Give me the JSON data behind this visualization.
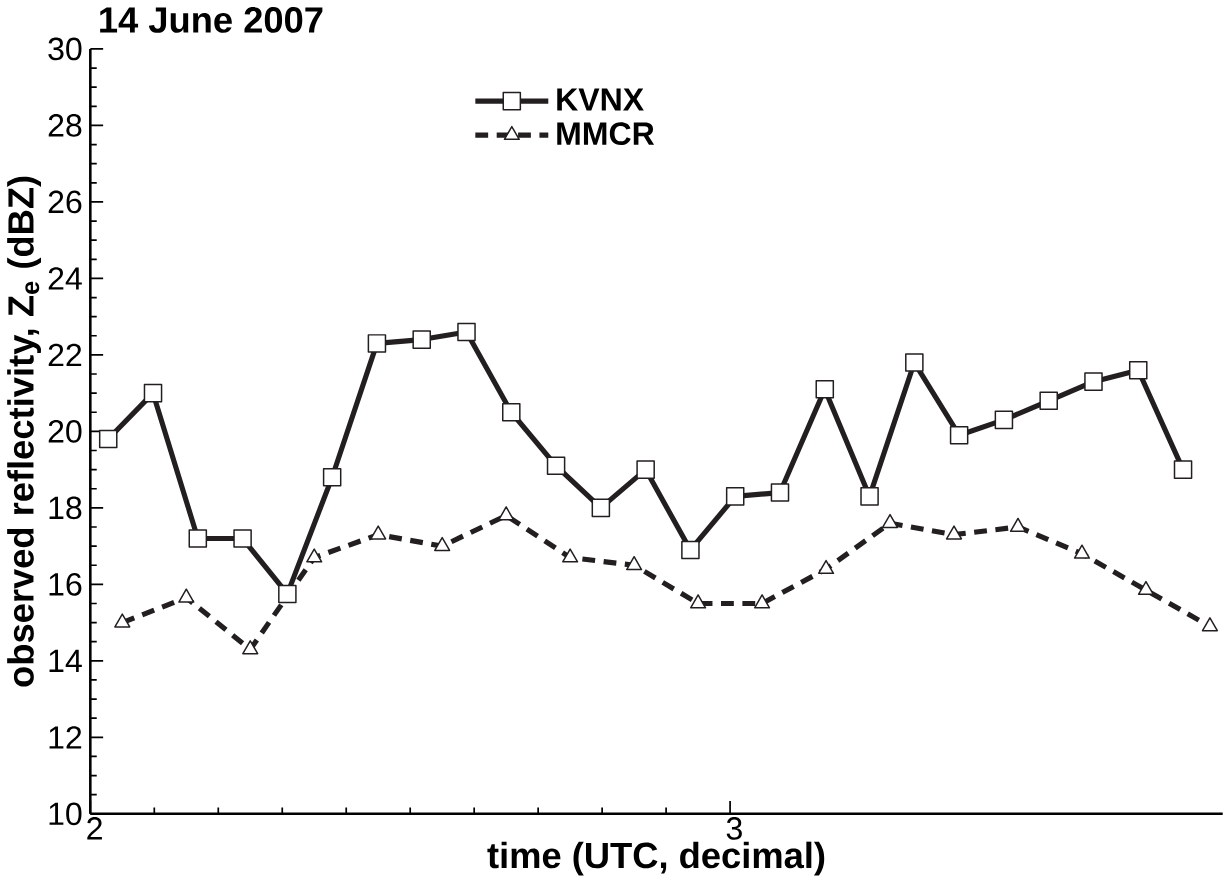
{
  "chart_data": {
    "type": "line",
    "title": "14 June 2007",
    "xlabel": "time (UTC, decimal)",
    "ylabel": "observed reflectivity, Z$_{e}$ (dBZ)",
    "xlim": [
      2,
      3.77
    ],
    "xticks": [
      2,
      3
    ],
    "ylim": [
      10,
      30
    ],
    "yticks": [
      10,
      12,
      14,
      16,
      18,
      20,
      22,
      24,
      26,
      28,
      30
    ],
    "grid": false,
    "legend": "top",
    "series": [
      {
        "name": "KVNX",
        "color": "#231f20",
        "marker": "square",
        "line_style": "solid",
        "x": [
          2.028,
          2.098,
          2.168,
          2.238,
          2.308,
          2.378,
          2.448,
          2.518,
          2.588,
          2.658,
          2.728,
          2.798,
          2.868,
          2.938,
          3.008,
          3.078,
          3.148,
          3.218,
          3.288,
          3.358,
          3.428,
          3.498,
          3.568,
          3.638,
          3.708
        ],
        "values": [
          19.8,
          21.0,
          17.2,
          17.2,
          15.75,
          18.8,
          22.3,
          22.4,
          22.6,
          20.5,
          19.1,
          18.0,
          19.0,
          16.9,
          18.3,
          18.4,
          21.1,
          18.3,
          21.8,
          19.9,
          20.3,
          20.8,
          21.3,
          21.6,
          19.0
        ]
      },
      {
        "name": "MMCR",
        "color": "#231f20",
        "marker": "triangle",
        "line_style": "dashed",
        "x": [
          2.05,
          2.15,
          2.25,
          2.35,
          2.45,
          2.55,
          2.65,
          2.75,
          2.85,
          2.95,
          3.05,
          3.15,
          3.25,
          3.35,
          3.45,
          3.55,
          3.65,
          3.75
        ],
        "values": [
          15.0,
          15.65,
          14.3,
          16.7,
          17.3,
          17.0,
          17.8,
          16.7,
          16.5,
          15.5,
          15.5,
          16.4,
          17.6,
          17.3,
          17.5,
          16.8,
          15.85,
          14.9
        ]
      }
    ]
  }
}
